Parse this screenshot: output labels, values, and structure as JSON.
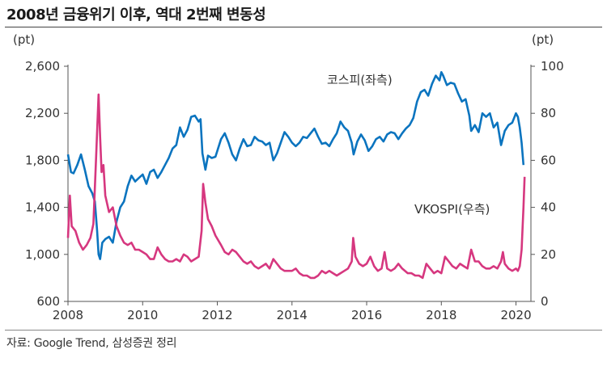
{
  "title": "2008년 금융위기 이후, 역대 2번째 변동성",
  "source": "자료: Google Trend, 삼성증권 정리",
  "chart_data": {
    "type": "line",
    "left_unit": "(pt)",
    "right_unit": "(pt)",
    "x_ticks": [
      2008,
      2010,
      2012,
      2014,
      2016,
      2018,
      2020
    ],
    "xlim": [
      2008,
      2020.4
    ],
    "ylim_left": [
      600,
      2600
    ],
    "ylim_right": [
      0,
      100
    ],
    "y_ticks_left": [
      600,
      1000,
      1400,
      1800,
      2200,
      2600
    ],
    "y_ticks_left_labels": [
      "600",
      "1,000",
      "1,400",
      "1,800",
      "2,200",
      "2,600"
    ],
    "y_ticks_right": [
      0,
      20,
      40,
      60,
      80,
      100
    ],
    "grid": false,
    "series": [
      {
        "name": "코스피(좌측)",
        "axis": "left",
        "color": "#0b74bf",
        "points": [
          [
            2008.0,
            1850
          ],
          [
            2008.08,
            1700
          ],
          [
            2008.15,
            1690
          ],
          [
            2008.25,
            1760
          ],
          [
            2008.35,
            1850
          ],
          [
            2008.45,
            1720
          ],
          [
            2008.55,
            1580
          ],
          [
            2008.65,
            1520
          ],
          [
            2008.72,
            1450
          ],
          [
            2008.78,
            1200
          ],
          [
            2008.82,
            1000
          ],
          [
            2008.86,
            960
          ],
          [
            2008.92,
            1100
          ],
          [
            2009.0,
            1130
          ],
          [
            2009.1,
            1150
          ],
          [
            2009.2,
            1100
          ],
          [
            2009.3,
            1280
          ],
          [
            2009.4,
            1400
          ],
          [
            2009.5,
            1450
          ],
          [
            2009.6,
            1580
          ],
          [
            2009.7,
            1670
          ],
          [
            2009.8,
            1620
          ],
          [
            2009.9,
            1650
          ],
          [
            2010.0,
            1680
          ],
          [
            2010.1,
            1600
          ],
          [
            2010.2,
            1700
          ],
          [
            2010.3,
            1720
          ],
          [
            2010.4,
            1650
          ],
          [
            2010.5,
            1700
          ],
          [
            2010.6,
            1760
          ],
          [
            2010.7,
            1820
          ],
          [
            2010.8,
            1900
          ],
          [
            2010.9,
            1930
          ],
          [
            2011.0,
            2080
          ],
          [
            2011.1,
            2000
          ],
          [
            2011.2,
            2060
          ],
          [
            2011.3,
            2170
          ],
          [
            2011.4,
            2180
          ],
          [
            2011.5,
            2130
          ],
          [
            2011.55,
            2150
          ],
          [
            2011.6,
            1860
          ],
          [
            2011.68,
            1720
          ],
          [
            2011.75,
            1840
          ],
          [
            2011.85,
            1820
          ],
          [
            2011.95,
            1830
          ],
          [
            2012.1,
            1980
          ],
          [
            2012.2,
            2030
          ],
          [
            2012.3,
            1950
          ],
          [
            2012.4,
            1850
          ],
          [
            2012.5,
            1800
          ],
          [
            2012.6,
            1900
          ],
          [
            2012.7,
            1980
          ],
          [
            2012.8,
            1920
          ],
          [
            2012.9,
            1930
          ],
          [
            2013.0,
            2000
          ],
          [
            2013.1,
            1970
          ],
          [
            2013.2,
            1960
          ],
          [
            2013.3,
            1930
          ],
          [
            2013.4,
            1950
          ],
          [
            2013.5,
            1800
          ],
          [
            2013.6,
            1860
          ],
          [
            2013.7,
            1950
          ],
          [
            2013.8,
            2040
          ],
          [
            2013.9,
            2000
          ],
          [
            2014.0,
            1950
          ],
          [
            2014.1,
            1920
          ],
          [
            2014.2,
            1950
          ],
          [
            2014.3,
            2000
          ],
          [
            2014.4,
            1990
          ],
          [
            2014.5,
            2030
          ],
          [
            2014.6,
            2070
          ],
          [
            2014.7,
            2000
          ],
          [
            2014.8,
            1940
          ],
          [
            2014.9,
            1950
          ],
          [
            2015.0,
            1920
          ],
          [
            2015.1,
            1980
          ],
          [
            2015.2,
            2030
          ],
          [
            2015.3,
            2130
          ],
          [
            2015.4,
            2080
          ],
          [
            2015.5,
            2050
          ],
          [
            2015.6,
            1950
          ],
          [
            2015.65,
            1850
          ],
          [
            2015.75,
            1960
          ],
          [
            2015.85,
            2020
          ],
          [
            2015.95,
            1970
          ],
          [
            2016.05,
            1880
          ],
          [
            2016.15,
            1920
          ],
          [
            2016.25,
            1980
          ],
          [
            2016.35,
            2000
          ],
          [
            2016.45,
            1960
          ],
          [
            2016.55,
            2020
          ],
          [
            2016.65,
            2040
          ],
          [
            2016.75,
            2030
          ],
          [
            2016.85,
            1980
          ],
          [
            2016.95,
            2030
          ],
          [
            2017.05,
            2070
          ],
          [
            2017.15,
            2100
          ],
          [
            2017.25,
            2160
          ],
          [
            2017.35,
            2300
          ],
          [
            2017.45,
            2380
          ],
          [
            2017.55,
            2400
          ],
          [
            2017.65,
            2350
          ],
          [
            2017.75,
            2450
          ],
          [
            2017.85,
            2520
          ],
          [
            2017.95,
            2480
          ],
          [
            2018.0,
            2550
          ],
          [
            2018.05,
            2520
          ],
          [
            2018.15,
            2440
          ],
          [
            2018.25,
            2460
          ],
          [
            2018.35,
            2450
          ],
          [
            2018.45,
            2370
          ],
          [
            2018.55,
            2300
          ],
          [
            2018.65,
            2320
          ],
          [
            2018.75,
            2180
          ],
          [
            2018.8,
            2050
          ],
          [
            2018.9,
            2100
          ],
          [
            2019.0,
            2040
          ],
          [
            2019.1,
            2200
          ],
          [
            2019.2,
            2170
          ],
          [
            2019.3,
            2200
          ],
          [
            2019.4,
            2080
          ],
          [
            2019.5,
            2120
          ],
          [
            2019.6,
            1930
          ],
          [
            2019.7,
            2050
          ],
          [
            2019.8,
            2100
          ],
          [
            2019.9,
            2120
          ],
          [
            2020.0,
            2200
          ],
          [
            2020.05,
            2170
          ],
          [
            2020.1,
            2080
          ],
          [
            2020.15,
            1950
          ],
          [
            2020.2,
            1760
          ]
        ]
      },
      {
        "name": "VKOSPI(우측)",
        "axis": "right",
        "color": "#d6377f",
        "points": [
          [
            2008.0,
            27
          ],
          [
            2008.05,
            45
          ],
          [
            2008.1,
            32
          ],
          [
            2008.2,
            30
          ],
          [
            2008.3,
            25
          ],
          [
            2008.4,
            22
          ],
          [
            2008.5,
            24
          ],
          [
            2008.6,
            27
          ],
          [
            2008.68,
            33
          ],
          [
            2008.75,
            60
          ],
          [
            2008.82,
            88
          ],
          [
            2008.86,
            70
          ],
          [
            2008.9,
            55
          ],
          [
            2008.95,
            58
          ],
          [
            2009.0,
            45
          ],
          [
            2009.1,
            38
          ],
          [
            2009.2,
            40
          ],
          [
            2009.3,
            32
          ],
          [
            2009.4,
            28
          ],
          [
            2009.5,
            25
          ],
          [
            2009.6,
            24
          ],
          [
            2009.7,
            25
          ],
          [
            2009.8,
            22
          ],
          [
            2009.9,
            22
          ],
          [
            2010.0,
            21
          ],
          [
            2010.1,
            20
          ],
          [
            2010.2,
            18
          ],
          [
            2010.3,
            18
          ],
          [
            2010.4,
            23
          ],
          [
            2010.5,
            20
          ],
          [
            2010.6,
            18
          ],
          [
            2010.7,
            17
          ],
          [
            2010.8,
            17
          ],
          [
            2010.9,
            18
          ],
          [
            2011.0,
            17
          ],
          [
            2011.1,
            20
          ],
          [
            2011.2,
            19
          ],
          [
            2011.3,
            17
          ],
          [
            2011.4,
            18
          ],
          [
            2011.5,
            19
          ],
          [
            2011.58,
            30
          ],
          [
            2011.62,
            50
          ],
          [
            2011.68,
            42
          ],
          [
            2011.75,
            35
          ],
          [
            2011.85,
            32
          ],
          [
            2011.95,
            28
          ],
          [
            2012.1,
            24
          ],
          [
            2012.2,
            21
          ],
          [
            2012.3,
            20
          ],
          [
            2012.4,
            22
          ],
          [
            2012.5,
            21
          ],
          [
            2012.6,
            19
          ],
          [
            2012.7,
            17
          ],
          [
            2012.8,
            16
          ],
          [
            2012.9,
            17
          ],
          [
            2013.0,
            15
          ],
          [
            2013.1,
            14
          ],
          [
            2013.2,
            15
          ],
          [
            2013.3,
            16
          ],
          [
            2013.4,
            14
          ],
          [
            2013.5,
            18
          ],
          [
            2013.6,
            16
          ],
          [
            2013.7,
            14
          ],
          [
            2013.8,
            13
          ],
          [
            2013.9,
            13
          ],
          [
            2014.0,
            13
          ],
          [
            2014.1,
            14
          ],
          [
            2014.2,
            12
          ],
          [
            2014.3,
            11
          ],
          [
            2014.4,
            11
          ],
          [
            2014.5,
            10
          ],
          [
            2014.6,
            10
          ],
          [
            2014.7,
            11
          ],
          [
            2014.8,
            13
          ],
          [
            2014.9,
            12
          ],
          [
            2015.0,
            13
          ],
          [
            2015.1,
            12
          ],
          [
            2015.2,
            11
          ],
          [
            2015.3,
            12
          ],
          [
            2015.4,
            13
          ],
          [
            2015.5,
            14
          ],
          [
            2015.6,
            17
          ],
          [
            2015.64,
            27
          ],
          [
            2015.7,
            19
          ],
          [
            2015.8,
            16
          ],
          [
            2015.9,
            15
          ],
          [
            2016.0,
            16
          ],
          [
            2016.1,
            19
          ],
          [
            2016.2,
            15
          ],
          [
            2016.3,
            13
          ],
          [
            2016.4,
            14
          ],
          [
            2016.48,
            21
          ],
          [
            2016.55,
            14
          ],
          [
            2016.65,
            13
          ],
          [
            2016.75,
            14
          ],
          [
            2016.85,
            16
          ],
          [
            2016.95,
            14
          ],
          [
            2017.1,
            12
          ],
          [
            2017.2,
            12
          ],
          [
            2017.3,
            11
          ],
          [
            2017.4,
            11
          ],
          [
            2017.5,
            10
          ],
          [
            2017.6,
            16
          ],
          [
            2017.7,
            14
          ],
          [
            2017.8,
            12
          ],
          [
            2017.9,
            13
          ],
          [
            2018.0,
            12
          ],
          [
            2018.1,
            19
          ],
          [
            2018.2,
            17
          ],
          [
            2018.3,
            15
          ],
          [
            2018.4,
            14
          ],
          [
            2018.5,
            16
          ],
          [
            2018.6,
            15
          ],
          [
            2018.7,
            14
          ],
          [
            2018.8,
            22
          ],
          [
            2018.9,
            17
          ],
          [
            2019.0,
            17
          ],
          [
            2019.1,
            15
          ],
          [
            2019.2,
            14
          ],
          [
            2019.3,
            14
          ],
          [
            2019.4,
            15
          ],
          [
            2019.5,
            14
          ],
          [
            2019.6,
            17
          ],
          [
            2019.65,
            21
          ],
          [
            2019.7,
            16
          ],
          [
            2019.8,
            14
          ],
          [
            2019.9,
            13
          ],
          [
            2020.0,
            14
          ],
          [
            2020.05,
            13
          ],
          [
            2020.1,
            15
          ],
          [
            2020.15,
            22
          ],
          [
            2020.2,
            40
          ],
          [
            2020.23,
            53
          ]
        ]
      }
    ],
    "annotations": [
      {
        "text": "코스피(좌측)",
        "series": 0
      },
      {
        "text": "VKOSPI(우측)",
        "series": 1
      }
    ]
  }
}
